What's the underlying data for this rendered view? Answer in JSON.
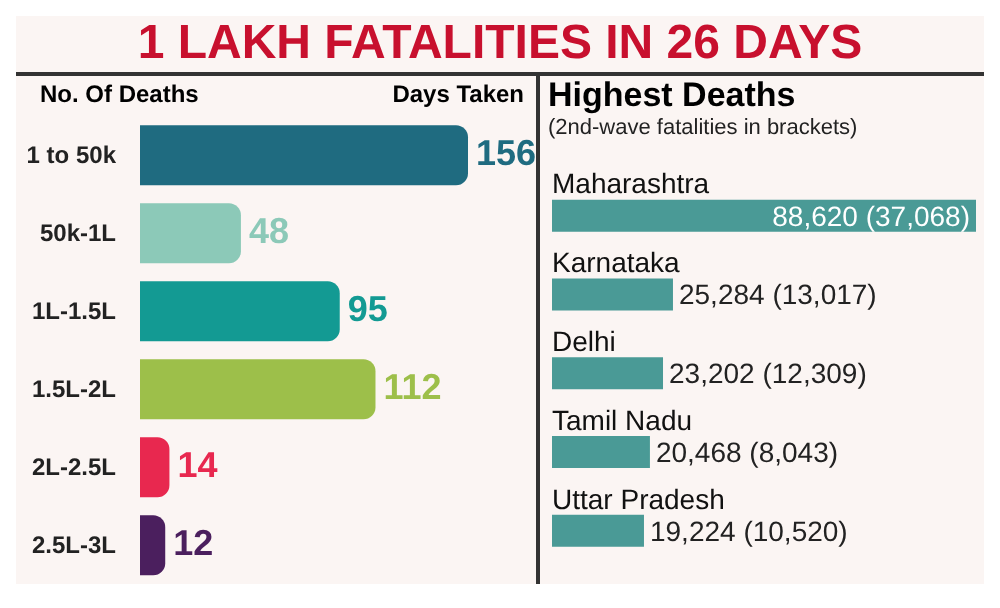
{
  "chart_data": [
    {
      "type": "bar",
      "title": "1 LAKH FATALITIES IN 26 DAYS",
      "ylabel": "No. Of Deaths",
      "xlabel": "Days Taken",
      "orientation": "horizontal",
      "categories": [
        "1 to 50k",
        "50k-1L",
        "1L-1.5L",
        "1.5L-2L",
        "2L-2.5L",
        "2.5L-3L"
      ],
      "values": [
        156,
        48,
        95,
        112,
        14,
        12
      ],
      "colors": [
        "#1f6b80",
        "#8cc9b8",
        "#139a93",
        "#9dbf4a",
        "#e8284f",
        "#4b1f5e"
      ],
      "data_labels": true,
      "tick_labels": "y"
    },
    {
      "type": "bar",
      "title": "Highest Deaths",
      "subtitle": "(2nd-wave fatalities in brackets)",
      "orientation": "horizontal",
      "categories": [
        "Maharashtra",
        "Karnataka",
        "Delhi",
        "Tamil Nadu",
        "Uttar Pradesh"
      ],
      "values": [
        88620,
        25284,
        23202,
        20468,
        19224
      ],
      "value_labels": [
        "88,620 (37,068)",
        "25,284 (13,017)",
        "23,202 (12,309)",
        "20,468 (8,043)",
        "19,224 (10,520)"
      ],
      "color": "#4a9a96",
      "tick_labels": "y"
    }
  ]
}
